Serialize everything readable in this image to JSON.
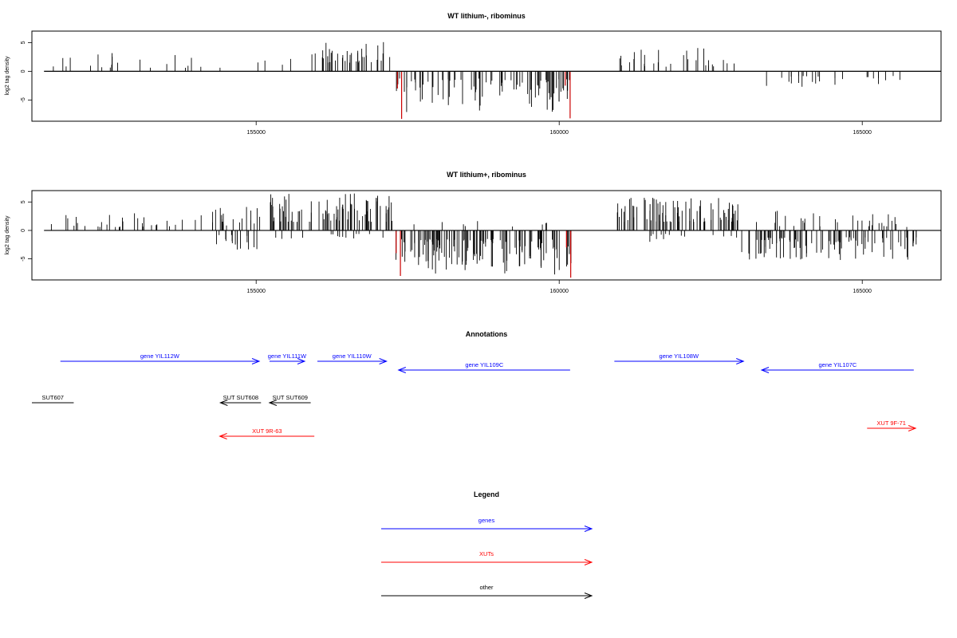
{
  "colors": {
    "genes": "#0000ff",
    "xuts": "#ff0000",
    "other": "#000000",
    "highlight": "#cc0000"
  },
  "chart_data": [
    {
      "type": "bar",
      "title": "WT lithium-, ribominus",
      "ylabel": "log2 tag density",
      "xlim": [
        151300,
        166300
      ],
      "ylim": [
        -8.7,
        7
      ],
      "x_ticks": [
        155000,
        160000,
        165000
      ],
      "x_tick_labels": [
        "155000",
        "160000",
        "165000"
      ],
      "y_ticks": [
        5,
        0,
        -5
      ],
      "y_tick_labels": [
        "5",
        "0",
        "-5"
      ],
      "baseline_range": [
        151500,
        166300
      ],
      "segments": [
        {
          "range": [
            151560,
            154500
          ],
          "dir": 1,
          "density": 0.07,
          "min": 0.6,
          "max": 3.5,
          "seed": 11
        },
        {
          "range": [
            154200,
            154450
          ],
          "dir": -1,
          "density": 0.015,
          "min": 1.2,
          "max": 2.6,
          "seed": 12
        },
        {
          "range": [
            155000,
            155600
          ],
          "dir": 1,
          "density": 0.07,
          "min": 1.0,
          "max": 4.0,
          "seed": 13
        },
        {
          "range": [
            155900,
            157300
          ],
          "dir": 1,
          "density": 0.28,
          "min": 1.5,
          "max": 6.0,
          "seed": 14
        },
        {
          "range": [
            157300,
            160200
          ],
          "dir": -1,
          "density": 0.3,
          "min": 1.2,
          "max": 7.2,
          "seed": 15
        },
        {
          "range": [
            160900,
            163000
          ],
          "dir": 1,
          "density": 0.14,
          "min": 0.8,
          "max": 4.2,
          "seed": 16
        },
        {
          "range": [
            163400,
            165900
          ],
          "dir": -1,
          "density": 0.1,
          "min": 0.8,
          "max": 3.4,
          "seed": 17
        },
        {
          "range": [
            165000,
            165300
          ],
          "dir": 1,
          "density": 0.015,
          "min": 1.0,
          "max": 2.5,
          "seed": 18
        }
      ],
      "highlights": [
        {
          "x": 157400,
          "value": -8.3
        },
        {
          "x": 157330,
          "value": -3.0
        },
        {
          "x": 160180,
          "value": -8.2
        },
        {
          "x": 160100,
          "value": -2.5
        }
      ]
    },
    {
      "type": "bar",
      "title": "WT lithium+, ribominus",
      "ylabel": "log2 tag density",
      "xlim": [
        151300,
        166300
      ],
      "ylim": [
        -8.7,
        7
      ],
      "x_ticks": [
        155000,
        160000,
        165000
      ],
      "x_tick_labels": [
        "155000",
        "160000",
        "165000"
      ],
      "y_ticks": [
        5,
        0,
        -5
      ],
      "y_tick_labels": [
        "5",
        "0",
        "-5"
      ],
      "baseline_range": [
        151500,
        166300
      ],
      "segments": [
        {
          "range": [
            151520,
            154200
          ],
          "dir": 1,
          "density": 0.12,
          "min": 0.6,
          "max": 3.2,
          "seed": 21
        },
        {
          "range": [
            151520,
            151560
          ],
          "dir": -1,
          "density": 0.05,
          "min": 2.2,
          "max": 2.4,
          "seed": 22
        },
        {
          "range": [
            154200,
            155200
          ],
          "dir": 1,
          "density": 0.2,
          "min": 0.8,
          "max": 4.5,
          "seed": 23
        },
        {
          "range": [
            154300,
            155100
          ],
          "dir": -1,
          "density": 0.2,
          "min": 0.8,
          "max": 3.5,
          "seed": 24
        },
        {
          "range": [
            155200,
            157300
          ],
          "dir": 1,
          "density": 0.4,
          "min": 1.5,
          "max": 6.5,
          "seed": 25
        },
        {
          "range": [
            155300,
            157200
          ],
          "dir": -1,
          "density": 0.08,
          "min": 0.6,
          "max": 2.0,
          "seed": 26
        },
        {
          "range": [
            157300,
            160200
          ],
          "dir": -1,
          "density": 0.45,
          "min": 1.5,
          "max": 7.8,
          "seed": 27
        },
        {
          "range": [
            157500,
            159800
          ],
          "dir": 1,
          "density": 0.04,
          "min": 0.6,
          "max": 1.8,
          "seed": 28
        },
        {
          "range": [
            160900,
            163000
          ],
          "dir": 1,
          "density": 0.38,
          "min": 1.5,
          "max": 6.0,
          "seed": 29
        },
        {
          "range": [
            161000,
            163000
          ],
          "dir": -1,
          "density": 0.07,
          "min": 0.6,
          "max": 2.0,
          "seed": 30
        },
        {
          "range": [
            163000,
            165900
          ],
          "dir": -1,
          "density": 0.33,
          "min": 1.2,
          "max": 5.2,
          "seed": 31
        },
        {
          "range": [
            163200,
            165900
          ],
          "dir": 1,
          "density": 0.12,
          "min": 0.6,
          "max": 3.5,
          "seed": 32
        }
      ],
      "highlights": [
        {
          "x": 157380,
          "value": -8.0
        },
        {
          "x": 157310,
          "value": -4.0
        },
        {
          "x": 160190,
          "value": -8.3
        },
        {
          "x": 160120,
          "value": -3.0
        }
      ]
    }
  ],
  "annotations": {
    "title": "Annotations",
    "xlim": [
      151300,
      166300
    ],
    "features": [
      {
        "label": "gene YIL112W",
        "kind": "genes",
        "start": 151770,
        "end": 155050,
        "strand": "+",
        "row": 0
      },
      {
        "label": "gene YIL111W",
        "kind": "genes",
        "start": 155220,
        "end": 155800,
        "strand": "+",
        "row": 0
      },
      {
        "label": "gene YIL110W",
        "kind": "genes",
        "start": 156010,
        "end": 157150,
        "strand": "+",
        "row": 0
      },
      {
        "label": "gene YIL109C",
        "kind": "genes",
        "start": 157350,
        "end": 160180,
        "strand": "-",
        "row": 1
      },
      {
        "label": "gene YIL108W",
        "kind": "genes",
        "start": 160910,
        "end": 163040,
        "strand": "+",
        "row": 0
      },
      {
        "label": "gene YIL107C",
        "kind": "genes",
        "start": 163340,
        "end": 165850,
        "strand": "-",
        "row": 1
      },
      {
        "label": "SUT607",
        "kind": "other",
        "start": 151300,
        "end": 151990,
        "strand": "none",
        "row": 2
      },
      {
        "label": "SUT SUT608",
        "kind": "other",
        "start": 154410,
        "end": 155080,
        "strand": "-",
        "row": 2
      },
      {
        "label": "SUT SUT609",
        "kind": "other",
        "start": 155220,
        "end": 155900,
        "strand": "-",
        "row": 2
      },
      {
        "label": "XUT 9R-63",
        "kind": "xuts",
        "start": 154400,
        "end": 155960,
        "strand": "-",
        "row": 4
      },
      {
        "label": "XUT 9F-71",
        "kind": "xuts",
        "start": 165080,
        "end": 165880,
        "strand": "+",
        "row": 3
      }
    ]
  },
  "legend": {
    "title": "Legend",
    "items": [
      {
        "label": "genes",
        "kind": "genes"
      },
      {
        "label": "XUTs",
        "kind": "xuts"
      },
      {
        "label": "other",
        "kind": "other"
      }
    ]
  }
}
